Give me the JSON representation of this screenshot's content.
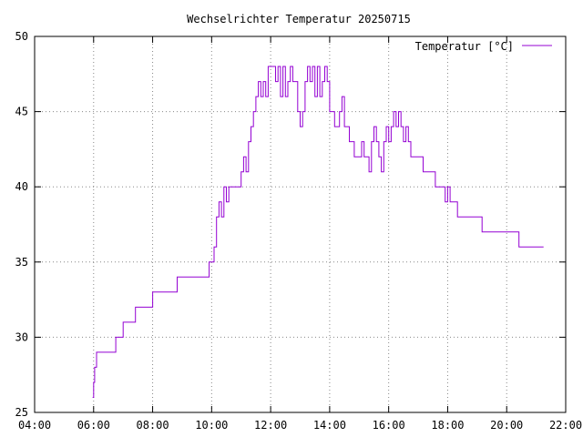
{
  "chart_data": {
    "type": "line",
    "title": "Wechselrichter Temperatur 20250715",
    "xlabel": "",
    "ylabel": "",
    "xlim": [
      "04:00",
      "22:00"
    ],
    "ylim": [
      25,
      50
    ],
    "x_ticks": [
      "04:00",
      "06:00",
      "08:00",
      "10:00",
      "12:00",
      "14:00",
      "16:00",
      "18:00",
      "20:00",
      "22:00"
    ],
    "y_ticks": [
      "25",
      "30",
      "35",
      "40",
      "45",
      "50"
    ],
    "grid": true,
    "legend_position": "top-right",
    "series": [
      {
        "name": "Temperatur [°C]",
        "color": "#9400d3",
        "points": [
          [
            "05:58",
            26
          ],
          [
            "06:00",
            27
          ],
          [
            "06:02",
            28
          ],
          [
            "06:06",
            29
          ],
          [
            "06:45",
            30
          ],
          [
            "07:00",
            31
          ],
          [
            "07:25",
            32
          ],
          [
            "08:00",
            33
          ],
          [
            "08:50",
            34
          ],
          [
            "09:55",
            35
          ],
          [
            "10:05",
            36
          ],
          [
            "10:10",
            38
          ],
          [
            "10:15",
            39
          ],
          [
            "10:20",
            38
          ],
          [
            "10:25",
            40
          ],
          [
            "10:30",
            39
          ],
          [
            "10:35",
            40
          ],
          [
            "11:00",
            41
          ],
          [
            "11:05",
            42
          ],
          [
            "11:10",
            41
          ],
          [
            "11:15",
            43
          ],
          [
            "11:20",
            44
          ],
          [
            "11:25",
            45
          ],
          [
            "11:30",
            46
          ],
          [
            "11:35",
            47
          ],
          [
            "11:40",
            46
          ],
          [
            "11:45",
            47
          ],
          [
            "11:50",
            46
          ],
          [
            "11:55",
            48
          ],
          [
            "12:10",
            47
          ],
          [
            "12:15",
            48
          ],
          [
            "12:20",
            46
          ],
          [
            "12:25",
            48
          ],
          [
            "12:30",
            46
          ],
          [
            "12:35",
            47
          ],
          [
            "12:40",
            48
          ],
          [
            "12:45",
            47
          ],
          [
            "12:55",
            45
          ],
          [
            "13:00",
            44
          ],
          [
            "13:05",
            45
          ],
          [
            "13:10",
            47
          ],
          [
            "13:15",
            48
          ],
          [
            "13:20",
            47
          ],
          [
            "13:25",
            48
          ],
          [
            "13:30",
            46
          ],
          [
            "13:35",
            48
          ],
          [
            "13:40",
            46
          ],
          [
            "13:45",
            47
          ],
          [
            "13:50",
            48
          ],
          [
            "13:55",
            47
          ],
          [
            "14:00",
            45
          ],
          [
            "14:10",
            44
          ],
          [
            "14:20",
            45
          ],
          [
            "14:25",
            46
          ],
          [
            "14:30",
            44
          ],
          [
            "14:40",
            43
          ],
          [
            "14:50",
            42
          ],
          [
            "15:05",
            43
          ],
          [
            "15:10",
            42
          ],
          [
            "15:20",
            41
          ],
          [
            "15:25",
            43
          ],
          [
            "15:30",
            44
          ],
          [
            "15:35",
            43
          ],
          [
            "15:40",
            42
          ],
          [
            "15:45",
            41
          ],
          [
            "15:50",
            43
          ],
          [
            "15:55",
            44
          ],
          [
            "16:00",
            43
          ],
          [
            "16:05",
            44
          ],
          [
            "16:10",
            45
          ],
          [
            "16:15",
            44
          ],
          [
            "16:20",
            45
          ],
          [
            "16:25",
            44
          ],
          [
            "16:30",
            43
          ],
          [
            "16:35",
            44
          ],
          [
            "16:40",
            43
          ],
          [
            "16:45",
            42
          ],
          [
            "17:10",
            41
          ],
          [
            "17:35",
            40
          ],
          [
            "17:55",
            39
          ],
          [
            "18:00",
            40
          ],
          [
            "18:05",
            39
          ],
          [
            "18:20",
            38
          ],
          [
            "19:10",
            37
          ],
          [
            "20:25",
            36
          ],
          [
            "21:15",
            36
          ]
        ]
      }
    ]
  }
}
